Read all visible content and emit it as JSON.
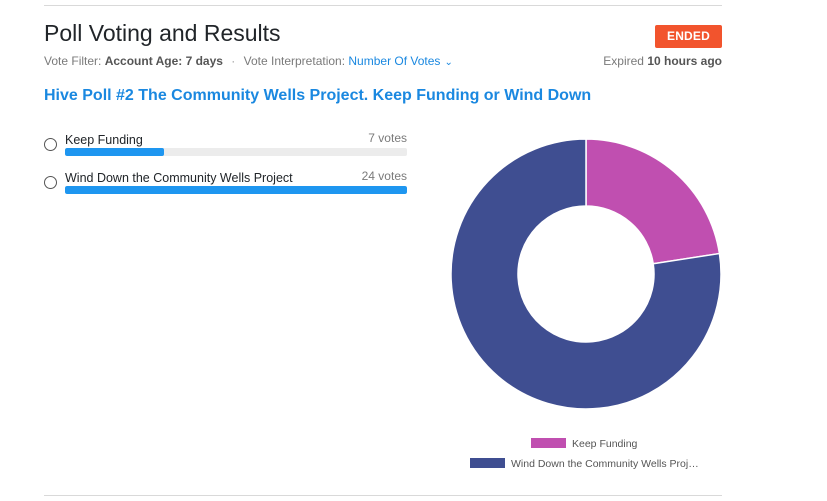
{
  "header": {
    "title": "Poll Voting and Results",
    "status": "ENDED",
    "filter_label": "Vote Filter:",
    "filter_value": "Account Age: 7 days",
    "separator": "·",
    "interp_label": "Vote Interpretation:",
    "interp_value": "Number Of Votes",
    "expired_label": "Expired",
    "expired_value": "10 hours ago"
  },
  "poll": {
    "question": "Hive Poll #2 The Community Wells Project. Keep Funding or Wind Down",
    "options": [
      {
        "label": "Keep Funding",
        "votes_text": "7 votes",
        "votes": 7,
        "fill_fraction": 0.29
      },
      {
        "label": "Wind Down the Community Wells Project",
        "votes_text": "24 votes",
        "votes": 24,
        "fill_fraction": 1.0
      }
    ]
  },
  "colors": {
    "accent": "#1a88e0",
    "bar_fill": "#1e96f0",
    "badge": "#f2542d",
    "keep_funding": "#c04fb0",
    "wind_down": "#3f4e91"
  },
  "chart_data": {
    "type": "pie",
    "categories": [
      "Keep Funding",
      "Wind Down the Community Wells Project"
    ],
    "values": [
      7,
      24
    ],
    "colors": [
      "#c04fb0",
      "#3f4e91"
    ],
    "donut": true,
    "legend_position": "bottom",
    "legend_labels": [
      "Keep Funding",
      "Wind Down the Community Wells Proj…"
    ]
  }
}
